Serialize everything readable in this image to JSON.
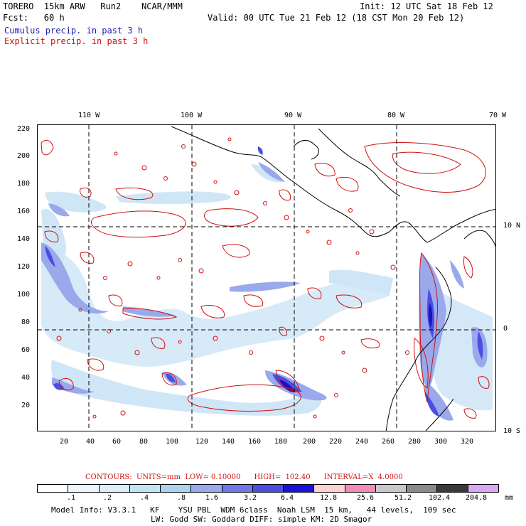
{
  "header": {
    "line1_left": "TORERO  15km ARW   Run2    NCAR/MMM",
    "line1_right": "Init: 12 UTC Sat 18 Feb 12",
    "line2_left": "Fcst:   60 h",
    "line2_right": "Valid: 00 UTC Tue 21 Feb 12 (18 CST Mon 20 Feb 12)",
    "cumulus_label": "Cumulus precip. in past 3 h",
    "explicit_label": "Explicit precip. in past 3 h"
  },
  "map": {
    "top_lon_labels": [
      "110 W",
      "100 W",
      "90 W",
      "80 W",
      "70 W"
    ],
    "right_lat_labels": [
      "10 N",
      "0",
      "10 S"
    ],
    "y_ticks": [
      "220",
      "200",
      "180",
      "160",
      "140",
      "120",
      "100",
      "80",
      "60",
      "40",
      "20"
    ],
    "x_ticks": [
      "20",
      "40",
      "60",
      "80",
      "100",
      "120",
      "140",
      "160",
      "180",
      "200",
      "220",
      "240",
      "260",
      "280",
      "300",
      "320"
    ],
    "colors": {
      "coast": "#000000",
      "explicit_contour": "#d01010",
      "cumulus_light": "#cfe6f7",
      "cumulus_mid": "#9aa8ec",
      "cumulus_dark": "#4b4ee0",
      "cumulus_max": "#1a10c8"
    }
  },
  "legend": {
    "contours_line": "CONTOURS:  UNITS=mm  LOW= 0.10000      HIGH=  102.40      INTERVAL=X  4.0000",
    "tick_labels": [
      ".1",
      ".2",
      ".4",
      ".8",
      "1.6",
      "3.2",
      "6.4",
      "12.8",
      "25.6",
      "51.2",
      "102.4",
      "204.8"
    ],
    "unit": "mm",
    "swatch_colors": [
      "#ffffff",
      "#eef6fc",
      "#dceefa",
      "#c2e3f6",
      "#a9d3f1",
      "#9aa8ec",
      "#6f78e6",
      "#4b4ee0",
      "#1a10e0",
      "#fbd1d1",
      "#f28bb8",
      "#c8c8c8",
      "#8a8a8a",
      "#3a3a3a",
      "#d9a8f5"
    ]
  },
  "footer": {
    "line1": "Model Info: V3.3.1   KF    YSU PBL  WDM 6class  Noah LSM  15 km,   44 levels,  109 sec",
    "line2": "LW: Godd SW: Goddard DIFF: simple KM: 2D Smagor"
  }
}
